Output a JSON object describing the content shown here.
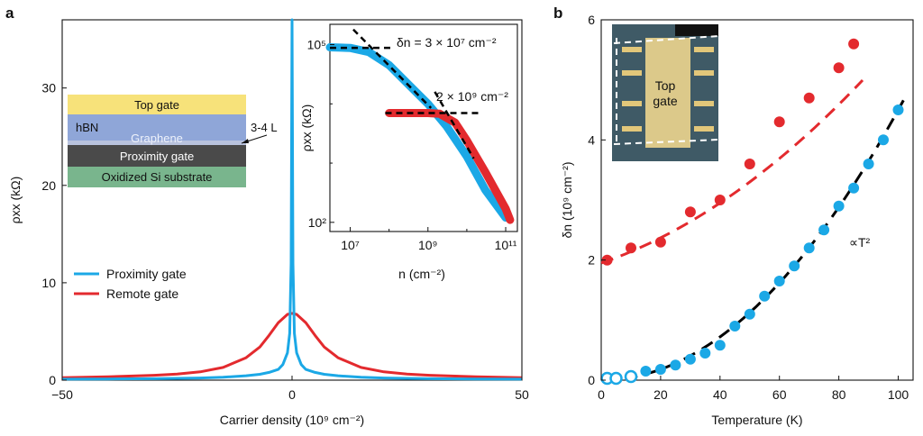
{
  "panel_a": {
    "letter": "a",
    "xlabel": "Carrier density (10⁹ cm⁻²)",
    "ylabel": "ρxx (kΩ)",
    "legend": [
      "Proximity gate",
      "Remote gate"
    ],
    "layer_stack": {
      "layers": [
        "Top gate",
        "hBN",
        "Graphene",
        "Proximity gate",
        "Oxidized Si substrate"
      ],
      "callout": "3-4 L"
    }
  },
  "panel_a_inset": {
    "xlabel": "n (cm⁻²)",
    "ylabel": "ρxx (kΩ)",
    "annotation_1": "δn = 3 × 10⁷ cm⁻²",
    "annotation_2": "2 × 10⁹ cm⁻²",
    "xticks": [
      "10⁷",
      "10⁹",
      "10¹¹"
    ],
    "yticks": [
      "10⁵",
      "10²"
    ]
  },
  "panel_b": {
    "letter": "b",
    "xlabel": "Temperature (K)",
    "ylabel": "δn (10⁹ cm⁻²)",
    "fit_label": "∝T²",
    "photo_label_1": "Top",
    "photo_label_2": "gate"
  },
  "colors": {
    "proximity": "#1BA8E6",
    "remote": "#E32A2E",
    "fit": "#000000"
  },
  "chart_data": [
    {
      "type": "line",
      "xlim": [
        -50,
        50
      ],
      "ylim": [
        0,
        37
      ],
      "xticks": [
        -50,
        0,
        50
      ],
      "yticks": [
        0,
        10,
        20,
        30
      ],
      "series": [
        {
          "name": "Proximity gate",
          "x": [
            -50,
            -40,
            -30,
            -20,
            -15,
            -10,
            -7,
            -5,
            -3,
            -2,
            -1,
            -0.5,
            -0.2,
            0,
            0.2,
            0.5,
            1,
            2,
            3,
            5,
            7,
            10,
            15,
            20,
            30,
            40,
            50
          ],
          "y": [
            0.1,
            0.12,
            0.15,
            0.22,
            0.3,
            0.45,
            0.6,
            0.8,
            1.1,
            1.6,
            2.8,
            4.8,
            12,
            37,
            12,
            4.8,
            2.8,
            1.6,
            1.1,
            0.8,
            0.6,
            0.45,
            0.3,
            0.22,
            0.15,
            0.12,
            0.1
          ]
        },
        {
          "name": "Remote gate",
          "x": [
            -50,
            -40,
            -30,
            -25,
            -20,
            -15,
            -10,
            -7,
            -5,
            -3,
            -1,
            0,
            1,
            3,
            5,
            7,
            10,
            15,
            20,
            25,
            30,
            40,
            50
          ],
          "y": [
            0.25,
            0.35,
            0.5,
            0.62,
            0.85,
            1.3,
            2.3,
            3.4,
            4.6,
            5.9,
            6.75,
            6.85,
            6.75,
            5.9,
            4.6,
            3.4,
            2.3,
            1.3,
            0.85,
            0.62,
            0.5,
            0.35,
            0.25
          ]
        }
      ]
    },
    {
      "type": "line",
      "xscale": "log",
      "yscale": "log",
      "xlim": [
        3000000,
        200000000000
      ],
      "ylim": [
        70,
        220000
      ],
      "series": [
        {
          "name": "Proximity gate",
          "x": [
            3000000,
            10000000,
            30000000,
            100000000,
            300000000,
            1000000000,
            3000000000,
            10000000000,
            30000000000,
            100000000000
          ],
          "y": [
            90000,
            88000,
            75000,
            45000,
            22000,
            10000,
            4200,
            1300,
            350,
            120
          ]
        },
        {
          "name": "Remote gate",
          "x": [
            100000000,
            300000000,
            1000000000,
            2000000000,
            5000000000,
            10000000000,
            30000000000,
            100000000000,
            130000000000
          ],
          "y": [
            7000,
            7000,
            7000,
            6800,
            4800,
            2400,
            700,
            170,
            110
          ]
        }
      ]
    },
    {
      "type": "scatter",
      "xlim": [
        0,
        105
      ],
      "ylim": [
        0,
        6
      ],
      "xticks": [
        0,
        20,
        40,
        60,
        80,
        100
      ],
      "yticks": [
        0,
        2,
        4,
        6
      ],
      "series": [
        {
          "name": "Remote gate",
          "x": [
            2,
            10,
            20,
            30,
            40,
            50,
            60,
            70,
            80,
            85
          ],
          "y": [
            2.0,
            2.2,
            2.3,
            2.8,
            3.0,
            3.6,
            4.3,
            4.7,
            5.2,
            5.6
          ]
        },
        {
          "name": "Proximity gate",
          "x": [
            2,
            5,
            10,
            15,
            20,
            25,
            30,
            35,
            40,
            45,
            50,
            55,
            60,
            65,
            70,
            75,
            80,
            85,
            90,
            95,
            100
          ],
          "y": [
            0.03,
            0.03,
            0.06,
            0.15,
            0.18,
            0.25,
            0.35,
            0.45,
            0.58,
            0.9,
            1.1,
            1.4,
            1.65,
            1.9,
            2.2,
            2.5,
            2.9,
            3.2,
            3.6,
            4.0,
            4.5
          ]
        }
      ]
    }
  ]
}
